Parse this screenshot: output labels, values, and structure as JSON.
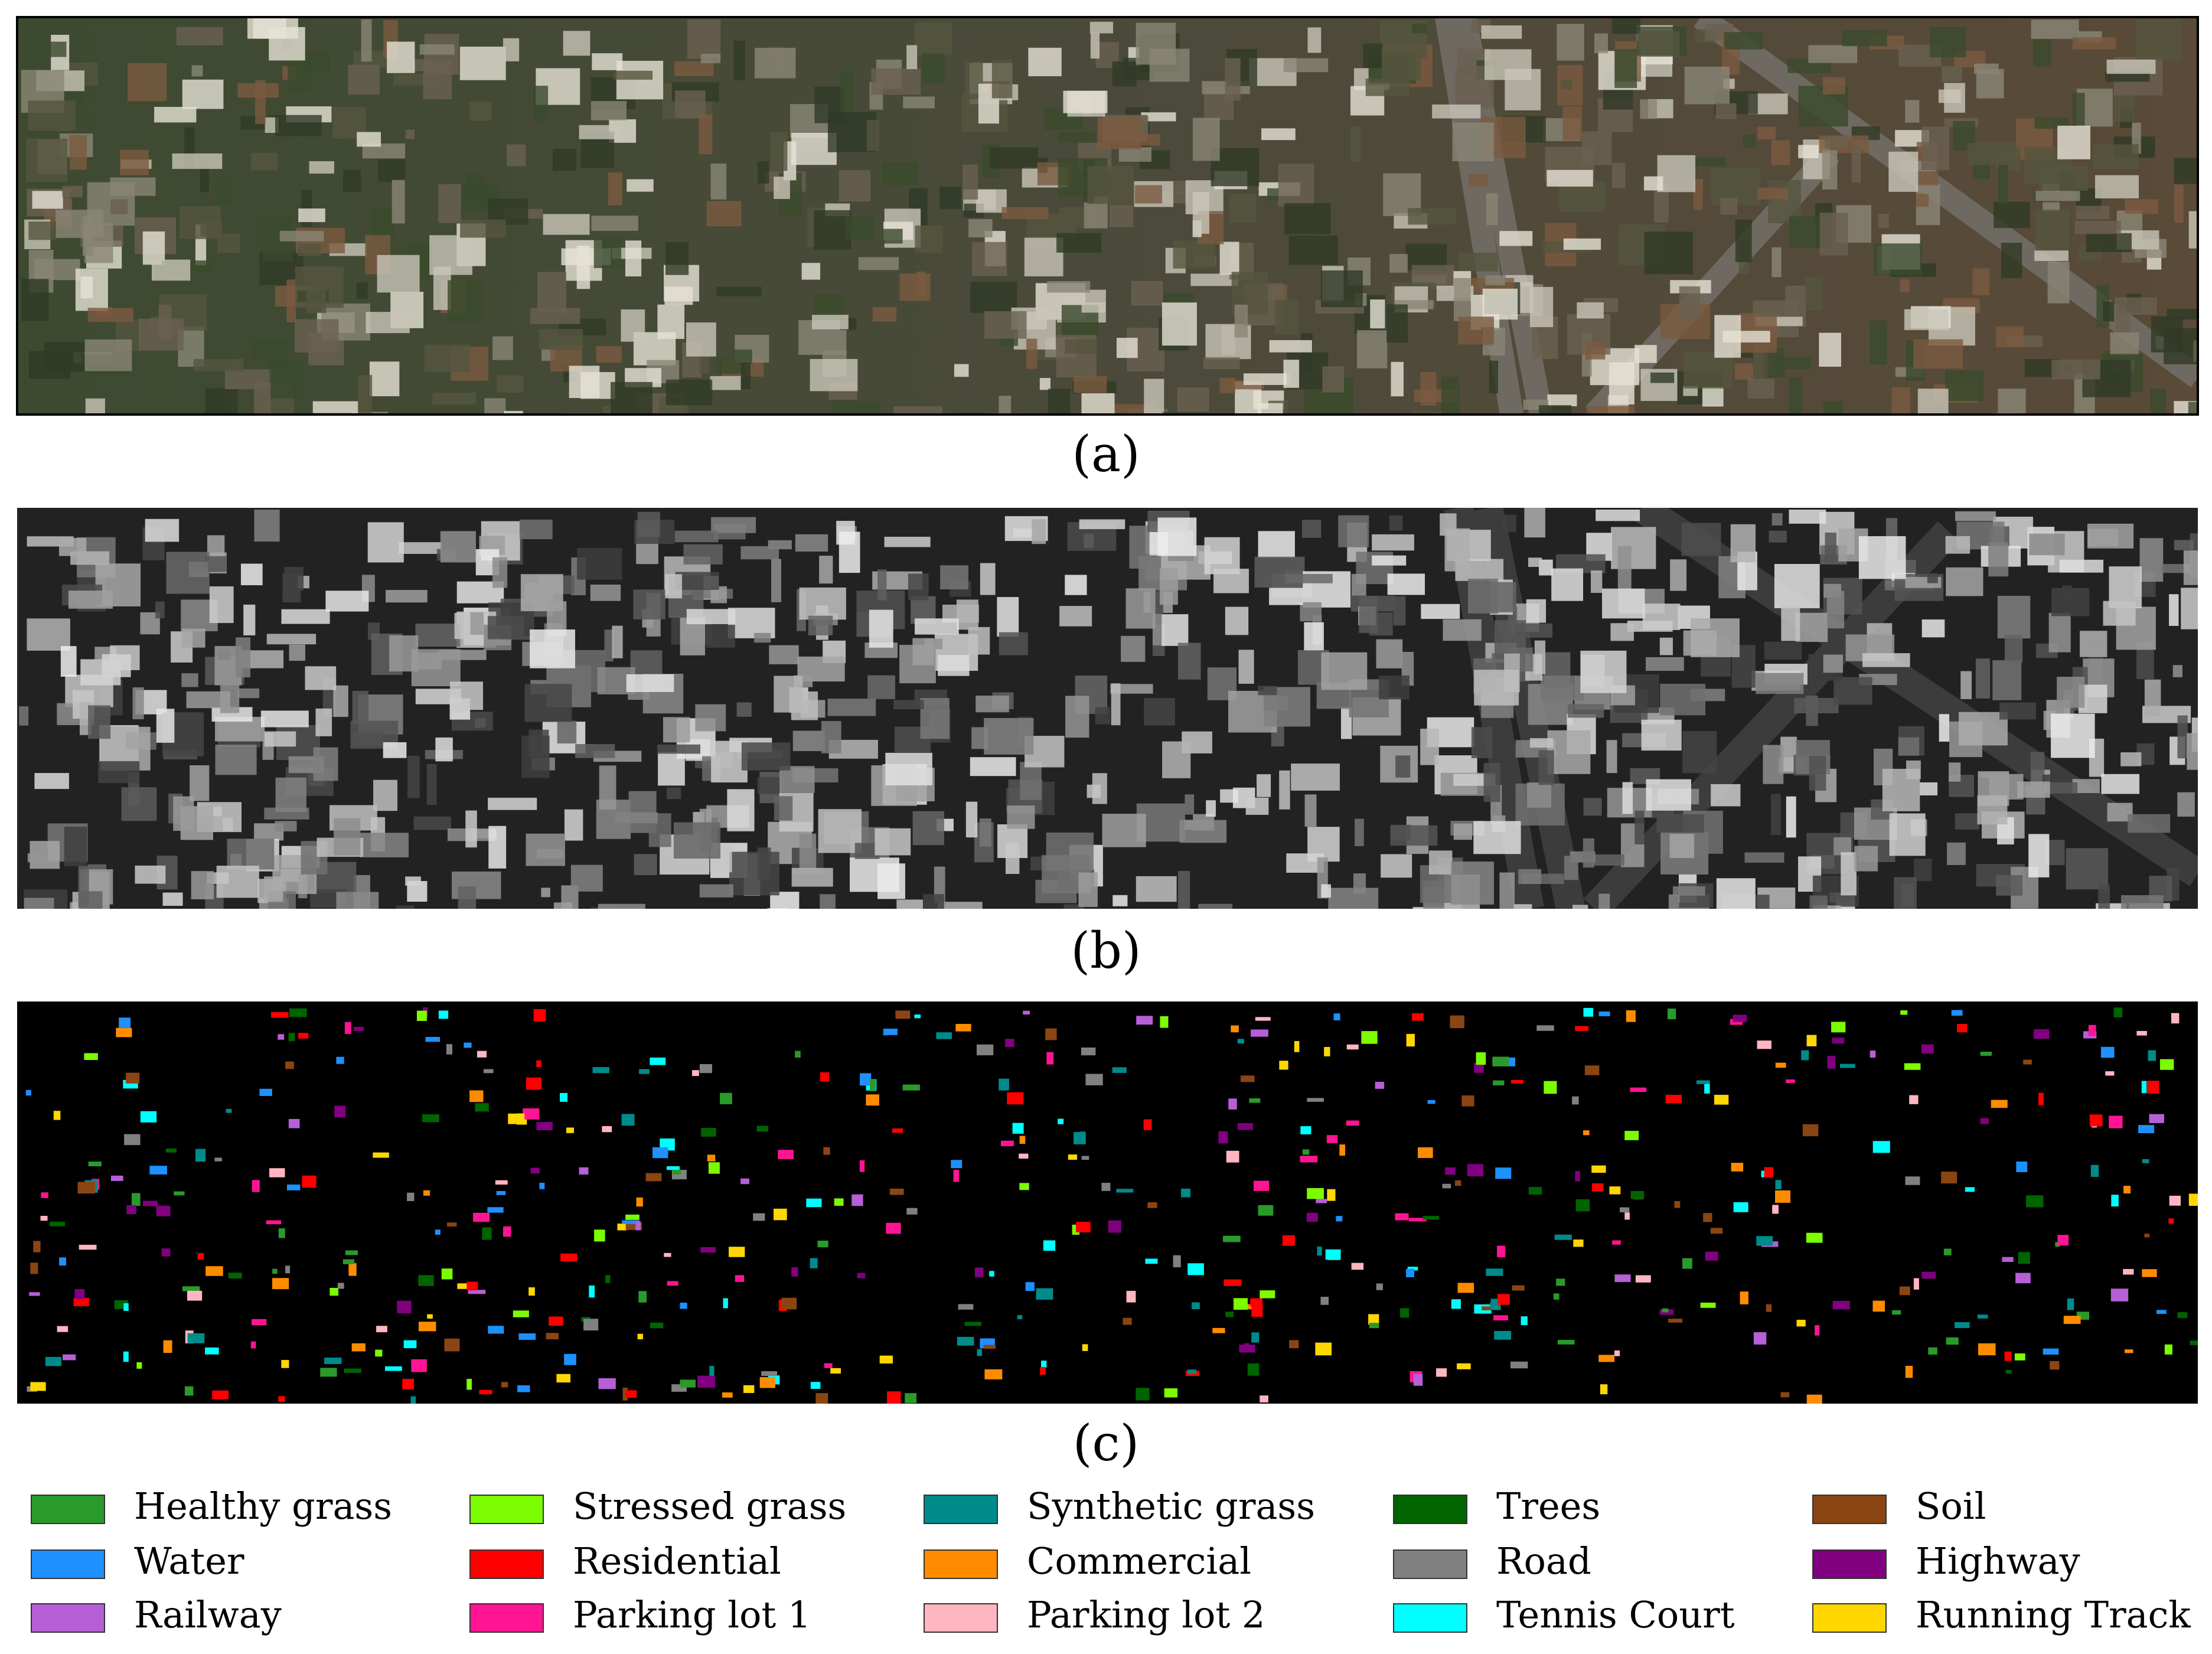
{
  "panels": [
    {
      "label": "(a)"
    },
    {
      "label": "(b)"
    },
    {
      "label": "(c)"
    }
  ],
  "legend": [
    {
      "name": "Healthy grass",
      "color": "#2a9a2a"
    },
    {
      "name": "Stressed grass",
      "color": "#7cfc00"
    },
    {
      "name": "Synthetic grass",
      "color": "#008b8b"
    },
    {
      "name": "Trees",
      "color": "#006400"
    },
    {
      "name": "Soil",
      "color": "#8b4513"
    },
    {
      "name": "Water",
      "color": "#1e90ff"
    },
    {
      "name": "Residential",
      "color": "#ff0000"
    },
    {
      "name": "Commercial",
      "color": "#ff8c00"
    },
    {
      "name": "Road",
      "color": "#808080"
    },
    {
      "name": "Highway",
      "color": "#800080"
    },
    {
      "name": "Railway",
      "color": "#b65fd6"
    },
    {
      "name": "Parking lot 1",
      "color": "#ff1493"
    },
    {
      "name": "Parking lot 2",
      "color": "#ffb6c1"
    },
    {
      "name": "Tennis Court",
      "color": "#00ffff"
    },
    {
      "name": "Running Track",
      "color": "#ffd700"
    }
  ]
}
